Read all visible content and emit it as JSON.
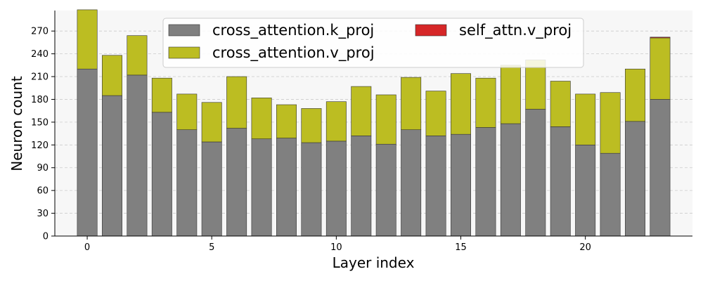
{
  "chart_data": {
    "type": "bar",
    "stacked": true,
    "xlabel": "Layer index",
    "ylabel": "Neuron count",
    "xlim": [
      -1.3,
      24.3
    ],
    "ylim": [
      0,
      297
    ],
    "x_ticks": [
      0,
      5,
      10,
      15,
      20
    ],
    "y_ticks": [
      0,
      30,
      60,
      90,
      120,
      150,
      180,
      210,
      240,
      270
    ],
    "grid": "horizontal-dashed",
    "legend_position": "top-center",
    "x": [
      0,
      1,
      2,
      3,
      4,
      5,
      6,
      7,
      8,
      9,
      10,
      11,
      12,
      13,
      14,
      15,
      16,
      17,
      18,
      19,
      20,
      21,
      22,
      23
    ],
    "series": [
      {
        "name": "cross_attention.k_proj",
        "color": "#808080",
        "values": [
          220,
          185,
          212,
          163,
          140,
          124,
          142,
          128,
          129,
          123,
          125,
          132,
          121,
          140,
          132,
          134,
          143,
          148,
          167,
          144,
          120,
          109,
          151,
          180
        ]
      },
      {
        "name": "cross_attention.v_proj",
        "color": "#bcbd22",
        "values": [
          78,
          53,
          52,
          45,
          47,
          52,
          68,
          54,
          44,
          45,
          52,
          65,
          65,
          69,
          59,
          80,
          65,
          77,
          65,
          60,
          67,
          80,
          69,
          81
        ]
      },
      {
        "name": "self_attn.v_proj",
        "color": "#d62728",
        "values": [
          0,
          0,
          0,
          0,
          0,
          0,
          0,
          0,
          0,
          0,
          0,
          0,
          0,
          0,
          0,
          0,
          0,
          0,
          0,
          0,
          0,
          0,
          0,
          1
        ]
      }
    ]
  }
}
